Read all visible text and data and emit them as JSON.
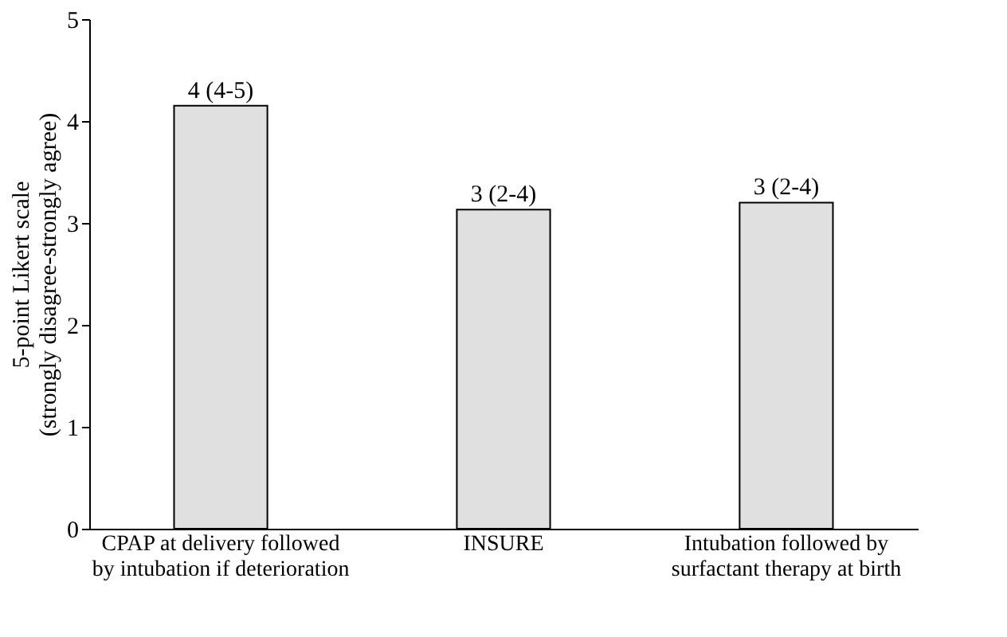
{
  "chart_data": {
    "type": "bar",
    "ylabel": "5-point Likert scale\n(strongly disagree-strongly agree)",
    "categories": [
      "CPAP at delivery followed\nby intubation if deterioration",
      "INSURE",
      "Intubation followed by\nsurfactant therapy at birth"
    ],
    "values": [
      4.15,
      3.13,
      3.2
    ],
    "value_labels": [
      "4 (4-5)",
      "3 (2-4)",
      "3 (2-4)"
    ],
    "color": "#e0e0e0",
    "ylim": [
      0,
      5
    ],
    "yticks": [
      0,
      1,
      2,
      3,
      4,
      5
    ],
    "grid": false
  }
}
